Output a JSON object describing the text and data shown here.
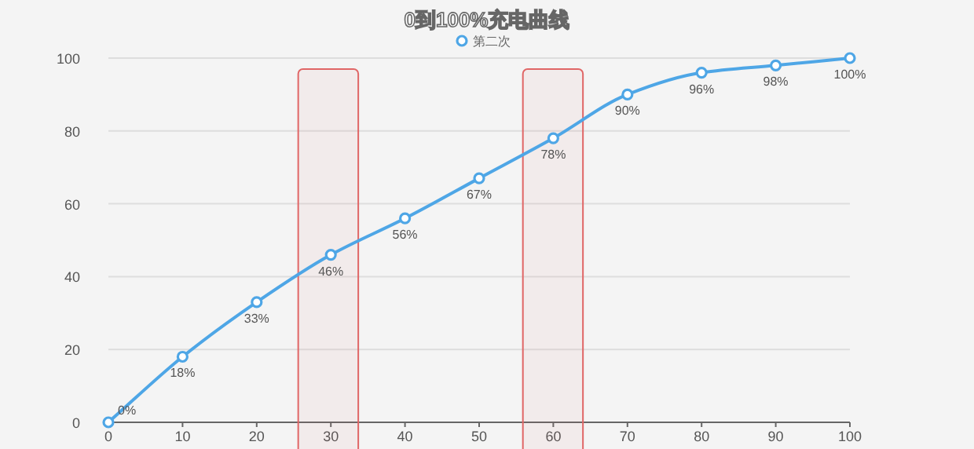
{
  "chart_data": {
    "type": "line",
    "title": "0到100%充电曲线",
    "x": [
      0,
      10,
      20,
      30,
      40,
      50,
      60,
      70,
      80,
      90,
      100
    ],
    "series": [
      {
        "name": "第二次",
        "color": "#4ea6e6",
        "values": [
          0,
          18,
          33,
          46,
          56,
          67,
          78,
          90,
          96,
          98,
          100
        ],
        "value_labels": [
          "0%",
          "18%",
          "33%",
          "46%",
          "56%",
          "67%",
          "78%",
          "90%",
          "96%",
          "98%",
          "100%"
        ]
      }
    ],
    "xlim": [
      0,
      100
    ],
    "xticks": [
      0,
      10,
      20,
      30,
      40,
      50,
      60,
      70,
      80,
      90,
      100
    ],
    "ylim": [
      0,
      100
    ],
    "yticks": [
      0,
      20,
      40,
      60,
      80,
      100
    ],
    "bands": [
      {
        "axis": "x",
        "from": 25.6,
        "to": 33.7,
        "color": "#e06666"
      },
      {
        "axis": "x",
        "from": 55.9,
        "to": 64,
        "color": "#e06666"
      }
    ],
    "grid": "y",
    "legend": "top",
    "marker": "circle",
    "line_style": "solid"
  }
}
